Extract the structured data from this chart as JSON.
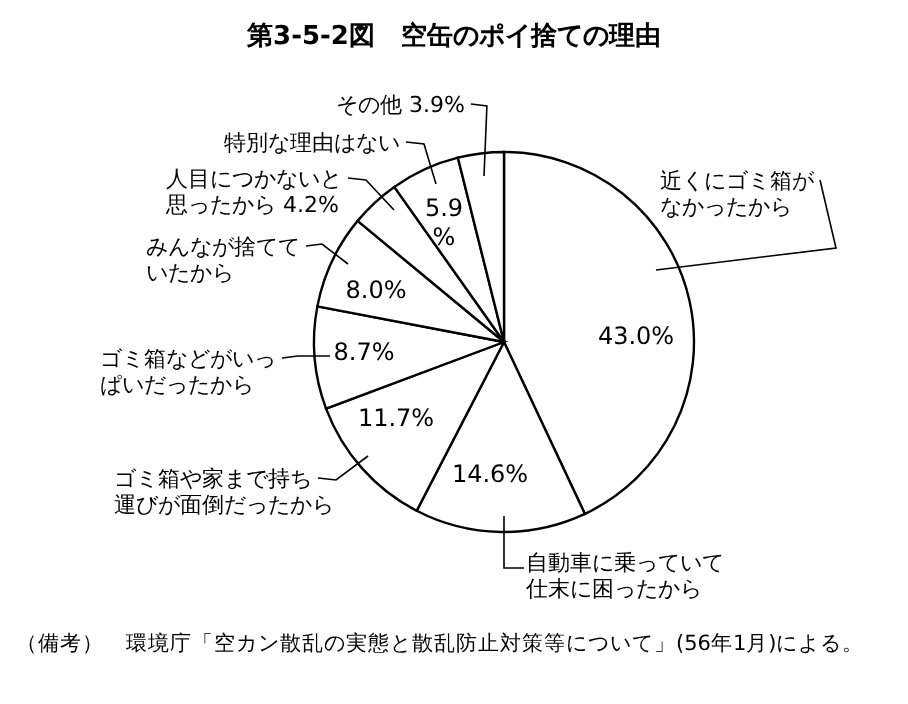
{
  "chart_data": {
    "type": "pie",
    "title": "第3-5-2図　空缶のポイ捨ての理由",
    "categories": [
      "近くにゴミ箱がなかったから",
      "自動車に乗っていて仕末に困ったから",
      "ゴミ箱や家まで持ち運びが面倒だったから",
      "ゴミ箱などがいっぱいだったから",
      "みんなが捨てていたから",
      "人目につかないと思ったから",
      "特別な理由はない",
      "その他"
    ],
    "values": [
      43.0,
      14.6,
      11.7,
      8.7,
      8.0,
      4.2,
      5.9,
      3.9
    ],
    "value_labels": [
      "43.0%",
      "14.6%",
      "11.7%",
      "8.7%",
      "8.0%",
      "4.2%",
      "5.9%",
      "3.9%"
    ],
    "colors": [
      "#ffffff",
      "#ffffff",
      "#ffffff",
      "#ffffff",
      "#ffffff",
      "#ffffff",
      "#ffffff",
      "#ffffff"
    ],
    "annotations": [
      "（備考）　環境庁「空カン散乱の実態と散乱防止対策等について」(56年1月)による。"
    ]
  }
}
